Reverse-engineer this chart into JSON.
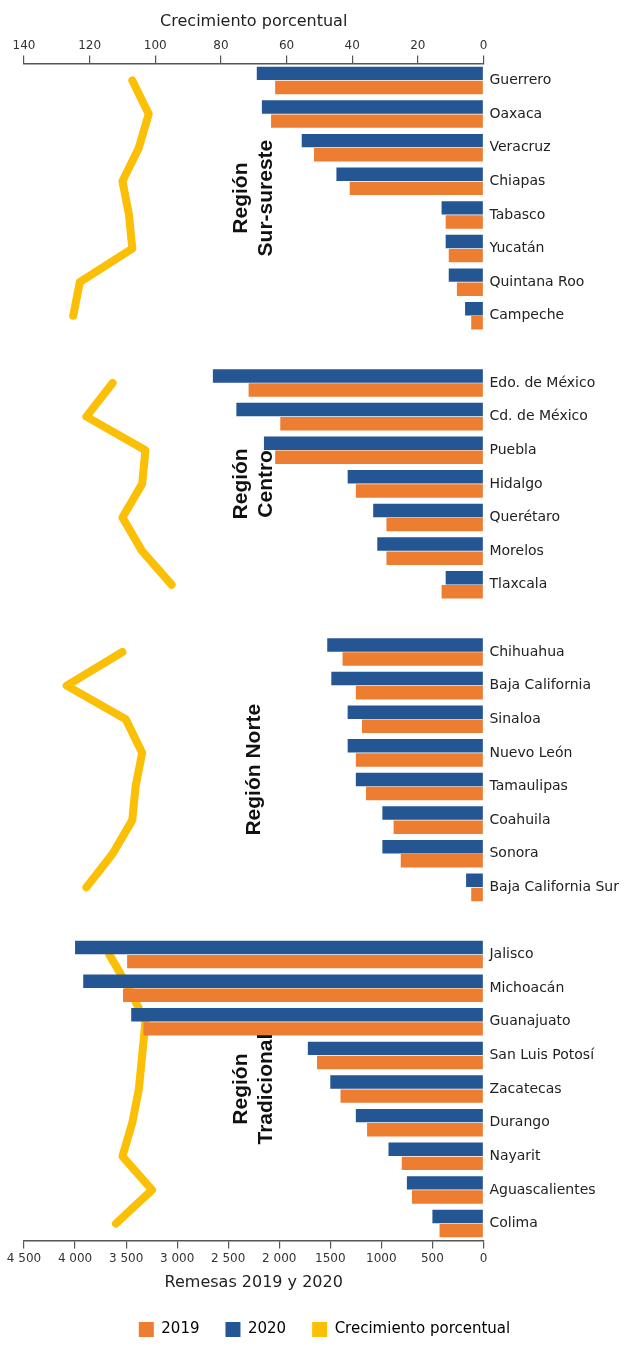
{
  "chart_data": {
    "type": "bar",
    "orientation": "horizontal",
    "categories": [
      "Guerrero",
      "Oaxaca",
      "Veracruz",
      "Chiapas",
      "Tabasco",
      "Yucatán",
      "Quintana Roo",
      "Campeche",
      null,
      "Edo. de México",
      "Cd. de México",
      "Puebla",
      "Hidalgo",
      "Querétaro",
      "Morelos",
      "Tlaxcala",
      null,
      "Chihuahua",
      "Baja California",
      "Sinaloa",
      "Nuevo León",
      "Tamaulipas",
      "Coahuila",
      "Sonora",
      "Baja California Sur",
      null,
      "Jalisco",
      "Michoacán",
      "Guanajuato",
      "San Luis Potosí",
      "Zacatecas",
      "Durango",
      "Nayarit",
      "Aguascalientes",
      "Colima"
    ],
    "series": [
      {
        "name": "2019",
        "color": "#ed7d31",
        "values": [
          2040,
          2080,
          1660,
          1310,
          370,
          340,
          260,
          120,
          null,
          2300,
          1990,
          2040,
          1250,
          950,
          950,
          410,
          null,
          1380,
          1250,
          1190,
          1250,
          1150,
          880,
          810,
          120,
          null,
          3490,
          3530,
          3330,
          1630,
          1400,
          1140,
          800,
          700,
          430
        ]
      },
      {
        "name": "2020",
        "color": "#245694",
        "values": [
          2220,
          2170,
          1780,
          1440,
          410,
          370,
          340,
          180,
          null,
          2650,
          2420,
          2150,
          1330,
          1080,
          1040,
          370,
          null,
          1530,
          1490,
          1330,
          1330,
          1250,
          990,
          990,
          170,
          null,
          4000,
          3920,
          3450,
          1720,
          1500,
          1250,
          930,
          750,
          500
        ]
      },
      {
        "name": "Crecimiento porcentual",
        "color": "#fbbf06",
        "type": "line",
        "axis": "x2",
        "values": [
          107,
          102,
          105,
          110,
          108,
          107,
          123,
          125,
          null,
          113,
          121,
          103,
          104,
          110,
          104,
          95,
          null,
          110,
          127,
          109,
          104,
          106,
          107,
          113,
          121,
          null,
          114,
          108,
          103,
          104,
          105,
          107,
          110,
          101,
          112
        ]
      }
    ],
    "xlabel": "Remesas 2019 y 2020",
    "x2label": "Crecimiento porcentual",
    "xlim": [
      4500,
      0
    ],
    "xticks": [
      0,
      500,
      1000,
      1500,
      {
        "value": 2000,
        "label": "2 000"
      },
      {
        "value": 2500,
        "label": "2 500"
      },
      {
        "value": 3000,
        "label": "3 000"
      },
      {
        "value": 3500,
        "label": "3 500"
      },
      {
        "value": 4000,
        "label": "4 000"
      },
      {
        "value": 4500,
        "label": "4 500"
      }
    ],
    "x2lim": [
      140,
      0
    ],
    "x2ticks": [
      0,
      20,
      40,
      60,
      80,
      100,
      120,
      140
    ],
    "annotations": [
      "Región Sur-sureste",
      "Región Centro",
      "Región Norte",
      "Región Tradicional"
    ],
    "legend": "bottom",
    "grid": false,
    "marker": "none",
    "line_style": "solid"
  }
}
